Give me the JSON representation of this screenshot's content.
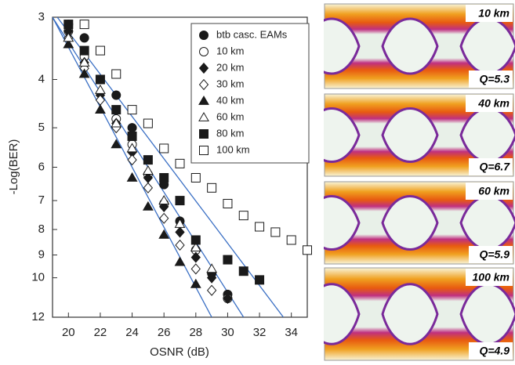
{
  "chart_data": {
    "type": "scatter",
    "xlabel": "OSNR (dB)",
    "ylabel": "-Log(BER)",
    "xlim": [
      19,
      35
    ],
    "xticks": [
      20,
      22,
      24,
      26,
      28,
      30,
      32,
      34
    ],
    "ylim": [
      3,
      12
    ],
    "yticks": [
      3,
      4,
      5,
      6,
      7,
      8,
      9,
      10,
      12
    ],
    "ylog": true,
    "y_reversed": true,
    "legend": "upper right",
    "series": [
      {
        "name": "btb casc. EAMs",
        "marker": "circle",
        "filled": true,
        "color": "#1a1a1a",
        "x": [
          20,
          21,
          23,
          24,
          26,
          27,
          29,
          30
        ],
        "values": [
          3.1,
          3.3,
          4.3,
          5.0,
          6.5,
          7.7,
          9.8,
          10.8
        ]
      },
      {
        "name": "10 km",
        "marker": "circle",
        "filled": false,
        "color": "#1a1a1a",
        "x": [
          20,
          21,
          23,
          24,
          25,
          26,
          28,
          30
        ],
        "values": [
          3.2,
          3.6,
          4.8,
          5.4,
          6.2,
          7.1,
          8.8,
          11.0
        ]
      },
      {
        "name": "20 km",
        "marker": "diamond",
        "filled": true,
        "color": "#1a1a1a",
        "x": [
          20,
          21,
          22,
          23,
          24,
          25,
          26,
          27,
          28,
          29,
          30
        ],
        "values": [
          3.2,
          3.7,
          4.3,
          4.9,
          5.6,
          6.3,
          7.2,
          8.1,
          9.1,
          10.0,
          11.0
        ]
      },
      {
        "name": "30 km",
        "marker": "diamond",
        "filled": false,
        "color": "#1a1a1a",
        "x": [
          20,
          21,
          22,
          23,
          24,
          25,
          26,
          27,
          28,
          29
        ],
        "values": [
          3.3,
          3.8,
          4.4,
          5.0,
          5.8,
          6.6,
          7.6,
          8.6,
          9.6,
          10.6
        ]
      },
      {
        "name": "40 km",
        "marker": "triangle",
        "filled": true,
        "color": "#1a1a1a",
        "x": [
          20,
          21,
          22,
          23,
          24,
          25,
          26,
          27,
          28
        ],
        "values": [
          3.4,
          3.9,
          4.6,
          5.4,
          6.3,
          7.2,
          8.2,
          9.3,
          10.3
        ]
      },
      {
        "name": "60 km",
        "marker": "triangle",
        "filled": false,
        "color": "#1a1a1a",
        "x": [
          20,
          21,
          22,
          23,
          24,
          25,
          26,
          27,
          28,
          29
        ],
        "values": [
          3.3,
          3.7,
          4.2,
          4.9,
          5.5,
          6.1,
          7.0,
          7.8,
          8.7,
          9.6
        ]
      },
      {
        "name": "80 km",
        "marker": "square",
        "filled": true,
        "color": "#1a1a1a",
        "x": [
          20,
          21,
          22,
          23,
          24,
          25,
          26,
          27,
          28,
          30,
          31,
          32
        ],
        "values": [
          3.1,
          3.5,
          4.0,
          4.6,
          5.2,
          5.8,
          6.3,
          7.0,
          8.4,
          9.2,
          9.7,
          10.1
        ]
      },
      {
        "name": "100 km",
        "marker": "square",
        "filled": false,
        "color": "#1a1a1a",
        "x": [
          21,
          22,
          23,
          24,
          25,
          26,
          27,
          28,
          29,
          30,
          31,
          32,
          33,
          34,
          35
        ],
        "values": [
          3.1,
          3.5,
          3.9,
          4.6,
          4.9,
          5.5,
          5.9,
          6.3,
          6.6,
          7.1,
          7.5,
          7.9,
          8.1,
          8.4,
          8.8
        ]
      }
    ],
    "fit_lines": [
      {
        "color": "#3a6fc4",
        "x": [
          19,
          29
        ],
        "values": [
          3,
          12
        ]
      },
      {
        "color": "#3a6fc4",
        "x": [
          19,
          31
        ],
        "values": [
          3,
          12
        ]
      },
      {
        "color": "#3a6fc4",
        "x": [
          19.3,
          33.5
        ],
        "values": [
          3,
          12
        ]
      }
    ]
  },
  "eye_diagrams": [
    {
      "label": "10 km",
      "q": "Q=5.3"
    },
    {
      "label": "40 km",
      "q": "Q=6.7"
    },
    {
      "label": "60 km",
      "q": "Q=5.9"
    },
    {
      "label": "100 km",
      "q": "Q=4.9"
    }
  ]
}
